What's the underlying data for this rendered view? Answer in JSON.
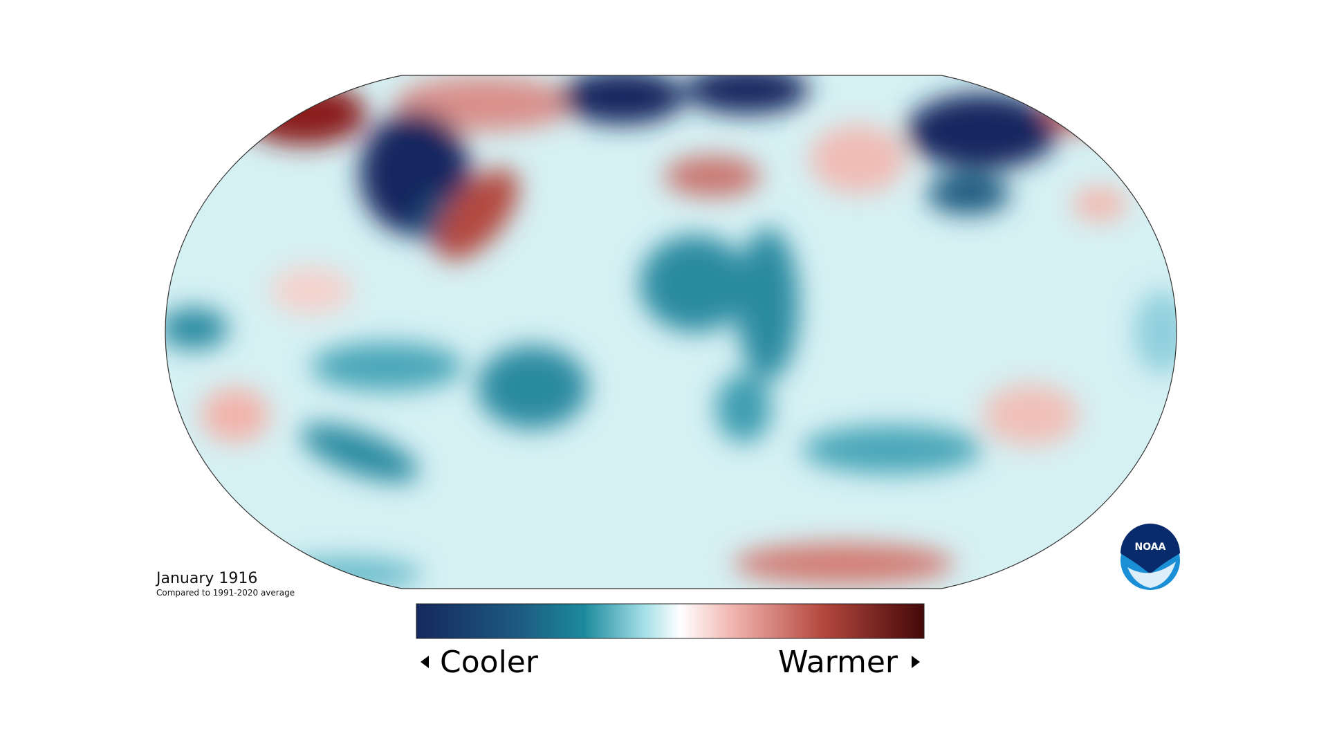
{
  "map": {
    "title": "January 1916",
    "subtitle": "Compared to 1991-2020 average"
  },
  "legend": {
    "low": "Cooler",
    "high": "Warmer"
  },
  "logo": {
    "text": "NOAA"
  }
}
